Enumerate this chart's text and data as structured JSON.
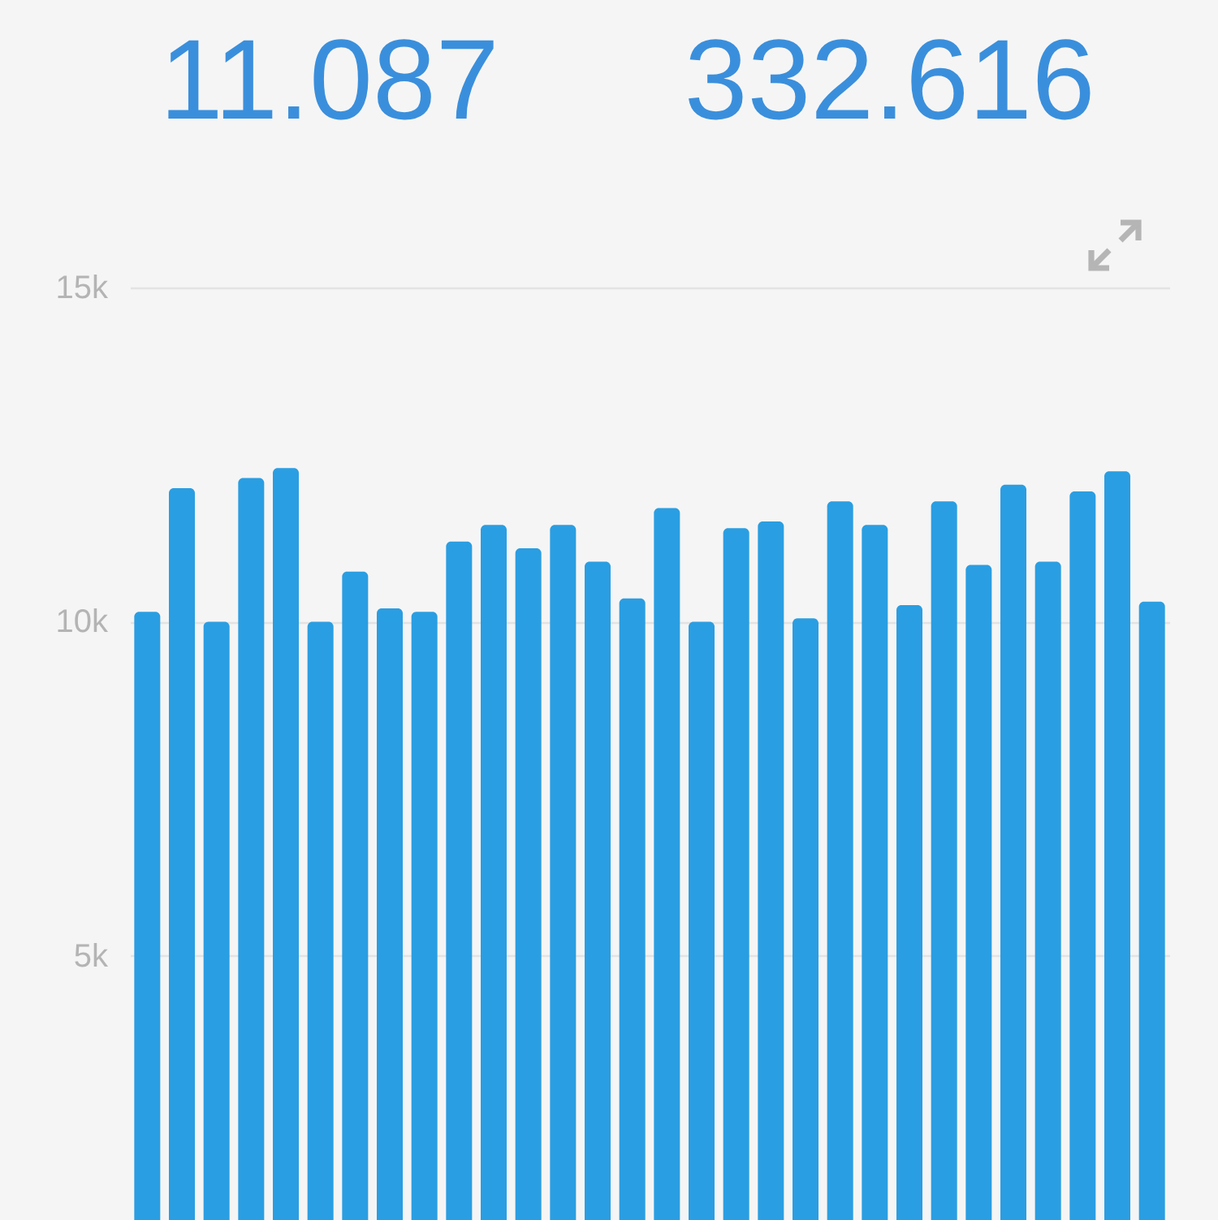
{
  "chart_data": {
    "type": "bar",
    "annotations": [
      "11.087",
      "332.616"
    ],
    "categories": [
      null,
      null,
      null,
      null,
      null,
      null,
      null,
      null,
      null,
      null,
      null,
      null,
      null,
      null,
      null,
      null,
      null,
      null,
      null,
      null,
      null,
      null,
      null,
      null,
      null,
      null,
      null,
      null,
      null,
      null
    ],
    "values": [
      10150,
      12000,
      10000,
      12150,
      12300,
      10000,
      10750,
      10200,
      10150,
      11200,
      11450,
      11100,
      11450,
      10900,
      10350,
      11700,
      10000,
      11400,
      11500,
      10050,
      11800,
      11450,
      10250,
      11800,
      10850,
      12050,
      10900,
      11950,
      12250,
      10300
    ],
    "color": "#2a9ee2",
    "ylim": [
      1050,
      15000
    ],
    "yticks": [
      {
        "value": 5000,
        "label": "5k"
      },
      {
        "value": 10000,
        "label": "10k"
      },
      {
        "value": 15000,
        "label": "15k"
      }
    ],
    "grid": "y",
    "tick_labels": "y"
  }
}
